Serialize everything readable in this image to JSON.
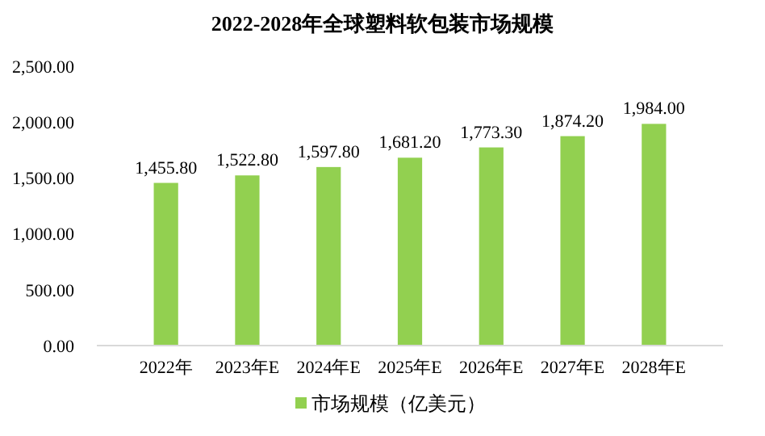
{
  "chart_data": {
    "type": "bar",
    "title": "2022-2028年全球塑料软包装市场规模",
    "categories": [
      "2022年",
      "2023年E",
      "2024年E",
      "2025年E",
      "2026年E",
      "2027年E",
      "2028年E"
    ],
    "series": [
      {
        "name": "市场规模（亿美元）",
        "color": "#92d050",
        "values": [
          1455.8,
          1522.8,
          1597.8,
          1681.2,
          1773.3,
          1874.2,
          1984.0
        ],
        "value_labels": [
          "1,455.80",
          "1,522.80",
          "1,597.80",
          "1,681.20",
          "1,773.30",
          "1,874.20",
          "1,984.00"
        ]
      }
    ],
    "ylim": [
      0,
      2500
    ],
    "yticks": [
      {
        "value": 0,
        "label": "0.00"
      },
      {
        "value": 500,
        "label": "500.00"
      },
      {
        "value": 1000,
        "label": "1,000.00"
      },
      {
        "value": 1500,
        "label": "1,500.00"
      },
      {
        "value": 2000,
        "label": "2,000.00"
      },
      {
        "value": 2500,
        "label": "2,500.00"
      }
    ],
    "grid": false,
    "legend": "bottom"
  }
}
